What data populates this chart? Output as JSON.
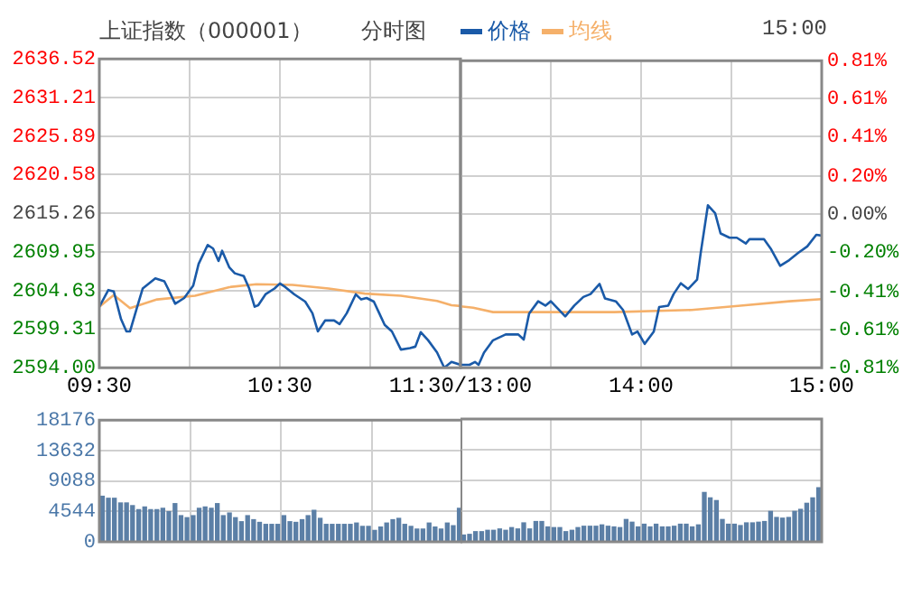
{
  "chart_data": [
    {
      "type": "line",
      "title": "上证指数（000001）",
      "subtitle": "分时图",
      "annotations": [
        "15:00"
      ],
      "legend": "top",
      "marker": "none",
      "line_style": "solid",
      "grid": true,
      "xlim": [
        9.5,
        11.5
      ],
      "xticks": [
        {
          "value": 9.5,
          "label": "09:30"
        },
        {
          "value": 10,
          "label": null
        },
        {
          "value": 10.5,
          "label": "10:30"
        },
        {
          "value": 11,
          "label": null
        },
        {
          "value": 11.5,
          "label": "11:30/13:00"
        }
      ],
      "ylim": [
        2594,
        2636.52
      ],
      "yticks": [
        {
          "value": 2594,
          "label": "2594.00"
        },
        2599.31,
        2604.63,
        2609.95,
        2615.26,
        2620.58,
        2625.89,
        2631.21,
        2636.52
      ],
      "series": [
        {
          "name": "价格",
          "color": "#1a5aa8",
          "x": [
            9.5,
            9.55,
            9.58,
            9.62,
            9.65,
            9.67,
            9.71,
            9.74,
            9.81,
            9.86,
            9.88,
            9.92,
            9.97,
            10.02,
            10.05,
            10.1,
            10.13,
            10.16,
            10.18,
            10.22,
            10.25,
            10.3,
            10.33,
            10.36,
            10.38,
            10.42,
            10.47,
            10.5,
            10.53,
            10.58,
            10.64,
            10.68,
            10.71,
            10.75,
            10.8,
            10.83,
            10.87,
            10.92,
            10.95,
            10.98,
            11.02,
            11.05,
            11.08,
            11.12,
            11.17,
            11.22,
            11.25,
            11.28,
            11.32,
            11.37,
            11.41,
            11.45,
            11.5
          ],
          "values": [
            2602.4,
            2604.7,
            2604.5,
            2600.7,
            2599.0,
            2599.0,
            2602.4,
            2604.9,
            2606.3,
            2605.9,
            2604.9,
            2602.8,
            2603.6,
            2605.3,
            2608.3,
            2610.9,
            2610.4,
            2608.7,
            2610.1,
            2607.8,
            2607.0,
            2606.6,
            2604.9,
            2602.4,
            2602.6,
            2604.1,
            2604.9,
            2605.6,
            2605.1,
            2604.1,
            2603.1,
            2601.5,
            2599.0,
            2600.5,
            2600.5,
            2600.0,
            2601.5,
            2604.1,
            2603.4,
            2603.6,
            2603.1,
            2601.5,
            2599.9,
            2599.0,
            2596.5,
            2596.7,
            2596.9,
            2598.9,
            2597.8,
            2596.1,
            2594.0,
            2594.8,
            2594.4
          ]
        },
        {
          "name": "均线",
          "color": "#f5b06a",
          "x": [
            9.5,
            9.58,
            9.67,
            9.82,
            10.03,
            10.22,
            10.37,
            10.57,
            10.77,
            10.97,
            11.17,
            11.37,
            11.45,
            11.5
          ],
          "values": [
            2602.4,
            2604.0,
            2602.2,
            2603.4,
            2603.9,
            2605.1,
            2605.5,
            2605.4,
            2604.9,
            2604.2,
            2603.9,
            2603.2,
            2602.6,
            2602.5
          ]
        }
      ]
    },
    {
      "type": "line",
      "marker": "none",
      "line_style": "solid",
      "grid": true,
      "xlim": [
        13,
        15
      ],
      "xticks": [
        {
          "value": 13,
          "label": null
        },
        {
          "value": 13.5,
          "label": null
        },
        {
          "value": 14,
          "label": "14:00"
        },
        {
          "value": 14.5,
          "label": null
        },
        {
          "value": 15,
          "label": "15:00"
        }
      ],
      "ylim": [
        2594,
        2636.52
      ],
      "y2lim": [
        -0.81,
        0.81
      ],
      "y2ticks": [
        {
          "value": -0.81,
          "label": "-0.81%"
        },
        {
          "value": -0.61,
          "label": "-0.61%"
        },
        {
          "value": -0.41,
          "label": "-0.41%"
        },
        {
          "value": -0.2,
          "label": "-0.20%"
        },
        {
          "value": 0,
          "label": "0.00%"
        },
        {
          "value": 0.2,
          "label": "0.20%"
        },
        {
          "value": 0.41,
          "label": "0.41%"
        },
        {
          "value": 0.61,
          "label": "0.61%"
        },
        {
          "value": 0.81,
          "label": "0.81%"
        }
      ],
      "series": [
        {
          "color": "#1a5aa8",
          "x": [
            13,
            13.05,
            13.08,
            13.1,
            13.13,
            13.18,
            13.25,
            13.32,
            13.35,
            13.38,
            13.43,
            13.47,
            13.5,
            13.58,
            13.63,
            13.68,
            13.72,
            13.77,
            13.8,
            13.86,
            13.9,
            13.95,
            13.98,
            14.02,
            14.07,
            14.1,
            14.15,
            14.18,
            14.22,
            14.26,
            14.31,
            14.33,
            14.37,
            14.41,
            14.44,
            14.49,
            14.53,
            14.58,
            14.6,
            14.68,
            14.72,
            14.77,
            14.82,
            14.87,
            14.92,
            14.97,
            15
          ],
          "values": [
            2594.4,
            2594.4,
            2594.8,
            2594.4,
            2596.1,
            2597.8,
            2598.6,
            2598.6,
            2597.9,
            2601.5,
            2603.2,
            2602.6,
            2603.2,
            2601.1,
            2602.6,
            2603.8,
            2604.2,
            2605.6,
            2603.6,
            2603.2,
            2602.0,
            2598.6,
            2599.0,
            2597.3,
            2599.0,
            2602.4,
            2602.6,
            2604.2,
            2605.7,
            2604.9,
            2606.2,
            2609.9,
            2616.5,
            2615.4,
            2612.6,
            2612.0,
            2612.0,
            2611.2,
            2611.8,
            2611.8,
            2610.4,
            2608.1,
            2608.9,
            2609.9,
            2610.8,
            2612.4,
            2612.3
          ]
        },
        {
          "color": "#f5b06a",
          "x": [
            13,
            13.07,
            13.18,
            13.45,
            13.85,
            14.28,
            14.55,
            14.82,
            15
          ],
          "values": [
            2602.5,
            2602.3,
            2601.7,
            2601.7,
            2601.7,
            2602.0,
            2602.6,
            2603.2,
            2603.5
          ]
        }
      ]
    },
    {
      "type": "bar",
      "color": "#5b7fa6",
      "grid": true,
      "tick_labels": "y",
      "xlim": [
        9.5,
        11.5
      ],
      "xticks": [
        {
          "value": 9.5,
          "label": null
        },
        {
          "value": 10,
          "label": null
        },
        {
          "value": 10.5,
          "label": null
        },
        {
          "value": 11,
          "label": null
        },
        {
          "value": 11.5,
          "label": null
        }
      ],
      "ylim": [
        0,
        18176
      ],
      "yticks": [
        0,
        4544,
        9088,
        13632,
        18176
      ],
      "x": [
        9.517,
        9.55,
        9.583,
        9.617,
        9.65,
        9.683,
        9.717,
        9.75,
        9.783,
        9.817,
        9.85,
        9.883,
        9.917,
        9.95,
        9.983,
        10.017,
        10.05,
        10.083,
        10.117,
        10.15,
        10.183,
        10.217,
        10.25,
        10.283,
        10.317,
        10.35,
        10.383,
        10.417,
        10.45,
        10.483,
        10.517,
        10.55,
        10.583,
        10.617,
        10.65,
        10.683,
        10.717,
        10.75,
        10.783,
        10.817,
        10.85,
        10.883,
        10.917,
        10.95,
        10.983,
        11.017,
        11.05,
        11.083,
        11.117,
        11.15,
        11.183,
        11.217,
        11.25,
        11.283,
        11.317,
        11.35,
        11.383,
        11.417,
        11.45,
        11.483
      ],
      "values": [
        6800,
        6500,
        6500,
        5800,
        5800,
        5400,
        4800,
        5200,
        4800,
        4800,
        5000,
        4500,
        5700,
        3900,
        3600,
        3900,
        5000,
        5200,
        5000,
        5700,
        3900,
        4300,
        3600,
        3000,
        3900,
        3300,
        2900,
        2600,
        2600,
        2600,
        3900,
        3000,
        2900,
        3300,
        3900,
        4700,
        3500,
        2600,
        2600,
        2600,
        2600,
        2600,
        2800,
        2300,
        2300,
        1700,
        2200,
        2800,
        3300,
        3500,
        2600,
        2300,
        1900,
        1900,
        2800,
        2200,
        1900,
        2800,
        2400,
        5000
      ]
    },
    {
      "type": "bar",
      "color": "#5b7fa6",
      "grid": true,
      "tick_labels": false,
      "xlim": [
        13,
        15
      ],
      "xticks": [
        {
          "value": 13,
          "label": null
        },
        {
          "value": 13.5,
          "label": null
        },
        {
          "value": 14,
          "label": null
        },
        {
          "value": 14.5,
          "label": null
        },
        {
          "value": 15,
          "label": null
        }
      ],
      "ylim": [
        0,
        18176
      ],
      "yticks": [
        0,
        4544,
        9088,
        13632,
        18176
      ],
      "x": [
        13.017,
        13.05,
        13.083,
        13.117,
        13.15,
        13.183,
        13.217,
        13.25,
        13.283,
        13.317,
        13.35,
        13.383,
        13.417,
        13.45,
        13.483,
        13.517,
        13.55,
        13.583,
        13.617,
        13.65,
        13.683,
        13.717,
        13.75,
        13.783,
        13.817,
        13.85,
        13.883,
        13.917,
        13.95,
        13.983,
        14.017,
        14.05,
        14.083,
        14.117,
        14.15,
        14.183,
        14.217,
        14.25,
        14.283,
        14.317,
        14.35,
        14.383,
        14.417,
        14.45,
        14.483,
        14.517,
        14.55,
        14.583,
        14.617,
        14.65,
        14.683,
        14.717,
        14.75,
        14.783,
        14.817,
        14.85,
        14.883,
        14.917,
        14.95,
        14.983
      ],
      "values": [
        1000,
        1100,
        1500,
        1500,
        1700,
        1700,
        1900,
        1700,
        2100,
        1900,
        2800,
        1900,
        3000,
        3000,
        2200,
        2100,
        2100,
        1500,
        1700,
        2100,
        2300,
        2300,
        2300,
        2500,
        2300,
        2200,
        2100,
        3300,
        2900,
        2200,
        2600,
        2200,
        2600,
        2200,
        2200,
        2300,
        2600,
        2600,
        2200,
        2500,
        7300,
        6500,
        6100,
        3300,
        2600,
        2600,
        2400,
        2800,
        2800,
        2900,
        3000,
        4500,
        3600,
        3500,
        3600,
        4500,
        4800,
        5700,
        6500,
        8000
      ]
    }
  ]
}
